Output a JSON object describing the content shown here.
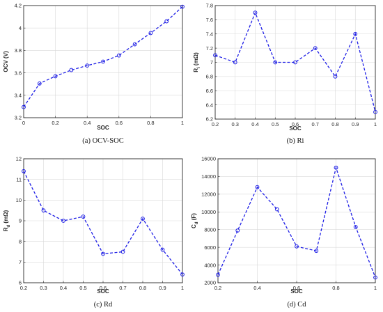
{
  "chart_data": [
    {
      "type": "line",
      "caption": "(a) OCV-SOC",
      "xlabel": "SOC",
      "ylabel": "OCV (V)",
      "x": [
        0,
        0.1,
        0.2,
        0.3,
        0.4,
        0.5,
        0.6,
        0.7,
        0.8,
        0.9,
        1.0
      ],
      "values": [
        3.295,
        3.505,
        3.57,
        3.625,
        3.665,
        3.7,
        3.755,
        3.855,
        3.955,
        4.06,
        4.19
      ],
      "xlim": [
        0,
        1
      ],
      "ylim": [
        3.2,
        4.2
      ],
      "xticks": [
        0,
        0.2,
        0.4,
        0.6,
        0.8,
        1
      ],
      "xtick_labels": [
        "0",
        "0.2",
        "0.4",
        "0.6",
        "0.8",
        "1"
      ],
      "yticks": [
        3.2,
        3.4,
        3.6,
        3.8,
        4,
        4.2
      ],
      "ytick_labels": [
        "3.2",
        "3.4",
        "3.6",
        "3.8",
        "4",
        "4.2"
      ],
      "grid": true,
      "color": "#1f1fe6"
    },
    {
      "type": "line",
      "caption": "(b) Ri",
      "xlabel": "SOC",
      "ylabel": "R",
      "ylabel_sub": "i",
      "ylabel_unit": " (mΩ)",
      "x": [
        0.2,
        0.3,
        0.4,
        0.5,
        0.6,
        0.7,
        0.8,
        0.9,
        1.0
      ],
      "values": [
        7.1,
        7.0,
        7.7,
        7.0,
        7.0,
        7.2,
        6.8,
        7.4,
        6.3
      ],
      "xlim": [
        0.2,
        1
      ],
      "ylim": [
        6.2,
        7.8
      ],
      "xticks": [
        0.2,
        0.3,
        0.4,
        0.5,
        0.6,
        0.7,
        0.8,
        0.9,
        1
      ],
      "xtick_labels": [
        "0.2",
        "0.3",
        "0.4",
        "0.5",
        "0.6",
        "0.7",
        "0.8",
        "0.9",
        "1"
      ],
      "yticks": [
        6.2,
        6.4,
        6.6,
        6.8,
        7,
        7.2,
        7.4,
        7.6,
        7.8
      ],
      "ytick_labels": [
        "6.2",
        "6.4",
        "6.6",
        "6.8",
        "7",
        "7.2",
        "7.4",
        "7.6",
        "7.8"
      ],
      "grid": true,
      "color": "#1f1fe6"
    },
    {
      "type": "line",
      "caption": "(c) Rd",
      "xlabel": "SOC",
      "ylabel": "R",
      "ylabel_sub": "d",
      "ylabel_unit": " (mΩ)",
      "x": [
        0.2,
        0.3,
        0.4,
        0.5,
        0.6,
        0.7,
        0.8,
        0.9,
        1.0
      ],
      "values": [
        11.4,
        9.5,
        9.0,
        9.2,
        7.4,
        7.5,
        9.1,
        7.6,
        6.4
      ],
      "xlim": [
        0.2,
        1
      ],
      "ylim": [
        6,
        12
      ],
      "xticks": [
        0.2,
        0.3,
        0.4,
        0.5,
        0.6,
        0.7,
        0.8,
        0.9,
        1
      ],
      "xtick_labels": [
        "0.2",
        "0.3",
        "0.4",
        "0.5",
        "0.6",
        "0.7",
        "0.8",
        "0.9",
        "1"
      ],
      "yticks": [
        6,
        7,
        8,
        9,
        10,
        11,
        12
      ],
      "ytick_labels": [
        "6",
        "7",
        "8",
        "9",
        "10",
        "11",
        "12"
      ],
      "grid": true,
      "color": "#1f1fe6"
    },
    {
      "type": "line",
      "caption": "(d) Cd",
      "xlabel": "SOC",
      "ylabel": "C",
      "ylabel_sub": "d",
      "ylabel_unit": " (F)",
      "x": [
        0.2,
        0.3,
        0.4,
        0.5,
        0.6,
        0.7,
        0.8,
        0.9,
        1.0
      ],
      "values": [
        2900,
        7900,
        12800,
        10300,
        6100,
        5600,
        15000,
        8300,
        2600
      ],
      "xlim": [
        0.2,
        1
      ],
      "ylim": [
        2000,
        16000
      ],
      "xticks": [
        0.2,
        0.4,
        0.6,
        0.8,
        1
      ],
      "xtick_labels": [
        "0.2",
        "0.4",
        "0.6",
        "0.8",
        "1"
      ],
      "yticks": [
        2000,
        4000,
        6000,
        8000,
        10000,
        12000,
        14000,
        16000
      ],
      "ytick_labels": [
        "2000",
        "4000",
        "6000",
        "8000",
        "10000",
        "12000",
        "14000",
        "16000"
      ],
      "grid": true,
      "color": "#1f1fe6"
    }
  ]
}
